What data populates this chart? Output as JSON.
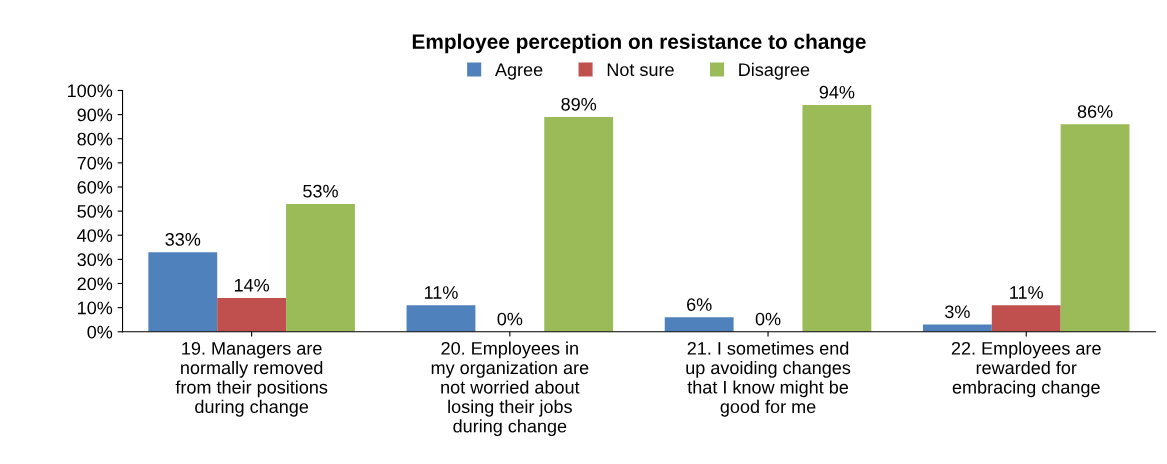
{
  "chart_data": {
    "type": "bar",
    "title": "Employee perception on resistance to change",
    "categories": [
      "19. Managers are\nnormally removed\nfrom their positions\nduring change",
      "20. Employees in\nmy organization are\nnot worried about\nlosing their jobs\nduring change",
      "21. I sometimes end\nup avoiding changes\nthat I know might be\ngood for me",
      "22. Employees are\nrewarded for\nembracing change"
    ],
    "series": [
      {
        "name": "Agree",
        "color": "#4f81bd",
        "values": [
          33,
          11,
          6,
          3
        ],
        "value_labels": [
          "33%",
          "11%",
          "6%",
          "3%"
        ]
      },
      {
        "name": "Not sure",
        "color": "#c0504d",
        "values": [
          14,
          0,
          0,
          11
        ],
        "value_labels": [
          "14%",
          "0%",
          "0%",
          "11%"
        ]
      },
      {
        "name": "Disagree",
        "color": "#9bbb59",
        "values": [
          53,
          89,
          94,
          86
        ],
        "value_labels": [
          "53%",
          "89%",
          "94%",
          "86%"
        ]
      }
    ],
    "ylim": [
      0,
      100
    ],
    "yticks": [
      {
        "value": 0,
        "label": "0%"
      },
      {
        "value": 10,
        "label": "10%"
      },
      {
        "value": 20,
        "label": "20%"
      },
      {
        "value": 30,
        "label": "30%"
      },
      {
        "value": 40,
        "label": "40%"
      },
      {
        "value": 50,
        "label": "50%"
      },
      {
        "value": 60,
        "label": "60%"
      },
      {
        "value": 70,
        "label": "70%"
      },
      {
        "value": 80,
        "label": "80%"
      },
      {
        "value": 90,
        "label": "90%"
      },
      {
        "value": 100,
        "label": "100%"
      }
    ],
    "grid": false,
    "legend": "top"
  }
}
